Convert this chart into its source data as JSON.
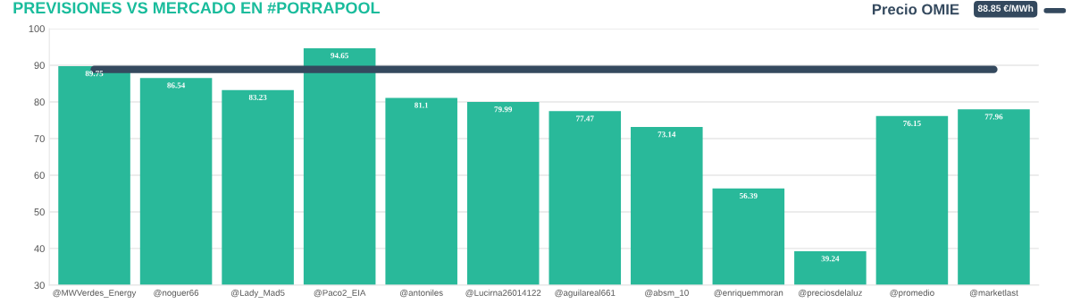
{
  "chart_data": {
    "type": "bar",
    "title": "PREVISIONES VS MERCADO EN #PORRAPOOL",
    "categories": [
      "@MWVerdes_Energy",
      "@noguer66",
      "@Lady_Mad5",
      "@Paco2_EIA",
      "@antoniles",
      "@Lucirna26014122",
      "@aguilareal661",
      "@absm_10",
      "@enriquemmoran",
      "@preciosdelaluz",
      "@promedio",
      "@marketlast"
    ],
    "series": [
      {
        "color": "#29b99a",
        "values": [
          89.75,
          86.54,
          83.23,
          94.65,
          81.1,
          79.99,
          77.47,
          73.14,
          56.39,
          39.24,
          76.15,
          77.96
        ],
        "value_labels": [
          "89.75",
          "86.54",
          "83.23",
          "94.65",
          "81.1",
          "79.99",
          "77.47",
          "73.14",
          "56.39",
          "39.24",
          "76.15",
          "77.96"
        ]
      },
      {
        "type": "line",
        "name": "Precio OMIE",
        "color": "#34495e",
        "values": [
          88.85,
          88.85,
          88.85,
          88.85,
          88.85,
          88.85,
          88.85,
          88.85,
          88.85,
          88.85,
          88.85,
          88.85
        ]
      }
    ],
    "annotations": [
      "88.85 €/MWh"
    ],
    "ylim": [
      30,
      100
    ],
    "yticks": [
      30,
      40,
      50,
      60,
      70,
      80,
      90,
      100
    ],
    "grid": "y",
    "legend": "top right",
    "marker": "none",
    "line_style": "solid"
  }
}
